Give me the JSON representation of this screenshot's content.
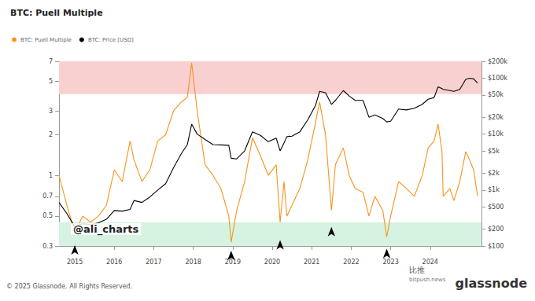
{
  "chart_data": {
    "type": "line",
    "title": "BTC: Puell Multiple",
    "x": [
      2014.6,
      2014.8,
      2015.0,
      2015.2,
      2015.4,
      2015.6,
      2015.8,
      2016.0,
      2016.2,
      2016.4,
      2016.5,
      2016.7,
      2016.9,
      2017.1,
      2017.3,
      2017.5,
      2017.7,
      2017.85,
      2017.96,
      2018.1,
      2018.3,
      2018.5,
      2018.7,
      2018.9,
      2018.96,
      2019.1,
      2019.3,
      2019.5,
      2019.7,
      2019.9,
      2020.1,
      2020.2,
      2020.3,
      2020.37,
      2020.5,
      2020.7,
      2020.9,
      2021.1,
      2021.2,
      2021.35,
      2021.5,
      2021.6,
      2021.8,
      2021.95,
      2022.1,
      2022.3,
      2022.45,
      2022.6,
      2022.8,
      2022.9,
      2023.0,
      2023.2,
      2023.4,
      2023.6,
      2023.8,
      2023.95,
      2024.1,
      2024.2,
      2024.3,
      2024.33,
      2024.5,
      2024.6,
      2024.75,
      2024.9,
      2025.0,
      2025.1,
      2025.2
    ],
    "xlim": [
      2014.6,
      2025.3
    ],
    "xticks": [
      2015,
      2016,
      2017,
      2018,
      2019,
      2020,
      2021,
      2022,
      2023,
      2024
    ],
    "ylim": [
      0.3,
      7
    ],
    "yticks": [
      0.3,
      0.5,
      0.7,
      1,
      2,
      3,
      5,
      7
    ],
    "y2lim": [
      100,
      200000
    ],
    "y2ticks": [
      {
        "value": 100,
        "label": "$100"
      },
      {
        "value": 200,
        "label": "$200"
      },
      {
        "value": 500,
        "label": "$500"
      },
      {
        "value": 1000,
        "label": "$1k"
      },
      {
        "value": 2000,
        "label": "$2k"
      },
      {
        "value": 5000,
        "label": "$5k"
      },
      {
        "value": 10000,
        "label": "$10k"
      },
      {
        "value": 20000,
        "label": "$20k"
      },
      {
        "value": 50000,
        "label": "$50k"
      },
      {
        "value": 100000,
        "label": "$100k"
      },
      {
        "value": 200000,
        "label": "$200k"
      }
    ],
    "log": "y",
    "grid": false,
    "legend": "top-left",
    "series": [
      {
        "name": "BTC: Puell Multiple",
        "color": "#f7931a",
        "values": [
          1.0,
          0.6,
          0.38,
          0.5,
          0.45,
          0.5,
          0.6,
          1.1,
          0.9,
          1.8,
          1.3,
          0.9,
          1.1,
          1.8,
          2.0,
          3.0,
          3.5,
          3.8,
          6.8,
          3.0,
          1.2,
          1.0,
          0.8,
          0.5,
          0.32,
          0.55,
          0.9,
          1.9,
          1.4,
          1.0,
          1.2,
          0.45,
          0.9,
          0.5,
          0.6,
          0.8,
          1.3,
          2.5,
          3.5,
          2.0,
          0.55,
          1.2,
          1.6,
          1.0,
          0.8,
          0.75,
          0.5,
          0.7,
          0.55,
          0.35,
          0.5,
          0.9,
          0.8,
          0.7,
          1.0,
          1.6,
          1.8,
          2.4,
          1.5,
          0.7,
          0.8,
          0.65,
          0.9,
          1.5,
          1.3,
          1.1,
          0.7
        ]
      },
      {
        "name": "BTC: Price [USD]",
        "color": "#000000",
        "axis": "y2",
        "values": [
          600,
          380,
          220,
          250,
          240,
          260,
          300,
          430,
          420,
          450,
          650,
          600,
          750,
          1000,
          1300,
          2500,
          4500,
          6500,
          15000,
          10000,
          8000,
          6500,
          6400,
          6300,
          3700,
          3600,
          5000,
          11000,
          9500,
          7300,
          8500,
          5000,
          7000,
          9000,
          9200,
          11000,
          18000,
          33000,
          58000,
          55000,
          34000,
          40000,
          60000,
          48000,
          40000,
          40000,
          20000,
          22000,
          19000,
          16500,
          17000,
          28000,
          27000,
          29000,
          34000,
          42000,
          45000,
          70000,
          65000,
          63000,
          60000,
          58000,
          63000,
          95000,
          100000,
          97000,
          82000
        ]
      }
    ],
    "bands": [
      {
        "from": 4,
        "to": 7,
        "color": "#f9d0d0"
      },
      {
        "from": 0.3,
        "to": 0.45,
        "color": "#d6f3e1"
      }
    ],
    "arrows": {
      "x": [
        2015.0,
        2018.96,
        2020.2,
        2021.5,
        2022.9
      ],
      "y": [
        0.33,
        0.3,
        0.36,
        0.45,
        0.31
      ]
    },
    "watermark": "@ali_charts",
    "footer": "© 2025 Glassnode. All Rights Reserved.",
    "brand": "glassnode",
    "source_logo": [
      "比推",
      "bitpush.news"
    ]
  }
}
